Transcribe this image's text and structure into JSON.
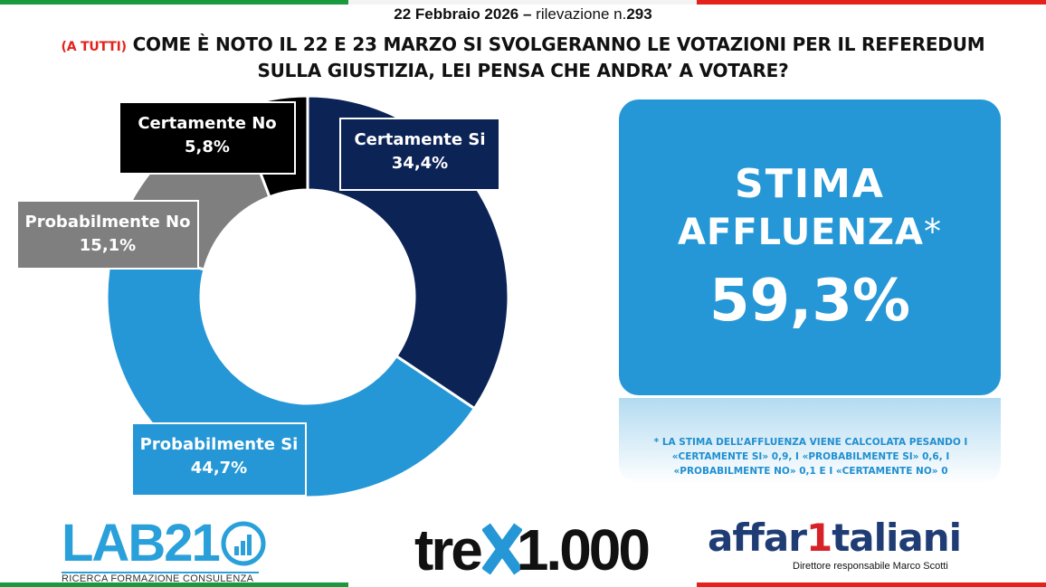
{
  "header": {
    "date": "22 Febbraio 2026",
    "separator": " – ",
    "survey_label": "rilevazione n.",
    "survey_number": "293"
  },
  "question": {
    "tag": "(A TUTTI)",
    "line1": " COME È NOTO IL 22 E 23 MARZO SI SVOLGERANNO LE VOTAZIONI PER IL REFEREDUM",
    "line2": "SULLA GIUSTIZIA, LEI PENSA CHE ANDRA’ A VOTARE?"
  },
  "chart_data": {
    "type": "pie",
    "donut": true,
    "slices": [
      {
        "label": "Certamente Si",
        "value": 34.4,
        "value_label": "34,4%",
        "color": "#0c2356"
      },
      {
        "label": "Probabilmente Si",
        "value": 44.7,
        "value_label": "44,7%",
        "color": "#2597d6"
      },
      {
        "label": "Probabilmente No",
        "value": 15.1,
        "value_label": "15,1%",
        "color": "#7f7f7f"
      },
      {
        "label": "Certamente No",
        "value": 5.8,
        "value_label": "5,8%",
        "color": "#000000"
      }
    ]
  },
  "estimate": {
    "line1": "STIMA",
    "line2": "AFFLUENZA",
    "asterisk": "*",
    "value": "59,3%",
    "note_line1": "* LA STIMA DELL’AFFLUENZA VIENE CALCOLATA PESANDO I",
    "note_line2": "«CERTAMENTE SI» 0,9,  I «PROBABILMENTE SI» 0,6, I",
    "note_line3": "«PROBABILMENTE NO» 0,1 E I «CERTAMENTE NO» 0"
  },
  "logos": {
    "lab_name": "LAB21",
    "lab_tagline": "RICERCA FORMAZIONE CONSULENZA",
    "tre_left": "tre",
    "tre_right": "1.000",
    "aff_left": "affar",
    "aff_one": "1",
    "aff_right": "taliani",
    "aff_sub": "Direttore responsabile Marco Scotti"
  },
  "colors": {
    "flag_green": "#1a9a3e",
    "flag_red": "#e3231b",
    "accent_blue": "#2597d6",
    "navy": "#0c2356"
  }
}
